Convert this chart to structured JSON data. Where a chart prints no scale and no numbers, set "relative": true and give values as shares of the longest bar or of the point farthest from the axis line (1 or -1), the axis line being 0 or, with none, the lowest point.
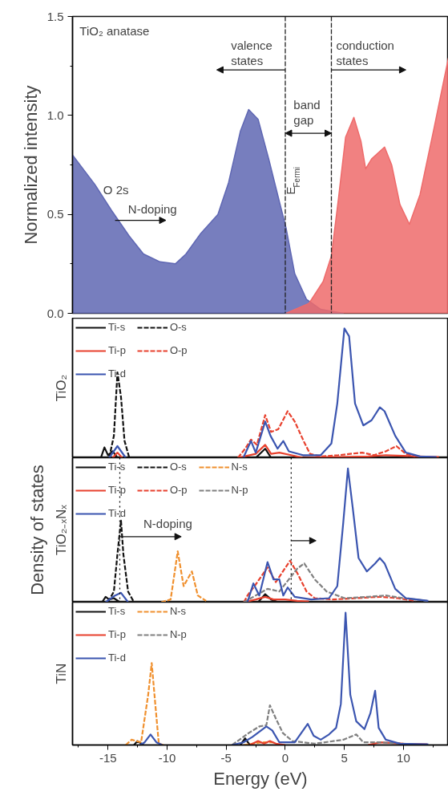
{
  "chart_data": [
    {
      "type": "area",
      "ylabel": "Normalized intensity",
      "xlim": [
        -18,
        13.8
      ],
      "ylim": [
        0,
        1.5
      ],
      "tick_labels": "y",
      "yticks": [
        {
          "value": 0,
          "label": "0.0"
        },
        {
          "value": 0.25,
          "label": null
        },
        {
          "value": 0.5,
          "label": "0.5"
        },
        {
          "value": 0.75,
          "label": null
        },
        {
          "value": 1,
          "label": "1.0"
        },
        {
          "value": 1.25,
          "label": null
        },
        {
          "value": 1.5,
          "label": "1.5"
        }
      ],
      "series": [
        {
          "color": "#5f67b3",
          "x": [
            -18.0,
            -16.1,
            -14.7,
            -13.2,
            -12.0,
            -10.6,
            -9.3,
            -8.4,
            -7.2,
            -5.7,
            -4.8,
            -3.8,
            -3.1,
            -2.3,
            -1.4,
            -0.65,
            0.07,
            0.8,
            1.8,
            3.0,
            4.9
          ],
          "values": [
            0.8,
            0.65,
            0.52,
            0.39,
            0.3,
            0.26,
            0.25,
            0.3,
            0.4,
            0.5,
            0.66,
            0.92,
            1.03,
            0.98,
            0.78,
            0.6,
            0.43,
            0.2,
            0.07,
            0.02,
            0
          ]
        },
        {
          "color": "#ee6b6b",
          "x": [
            0.07,
            2.0,
            3.2,
            3.9,
            4.5,
            5.1,
            5.8,
            6.4,
            6.8,
            7.3,
            8.4,
            9.0,
            9.7,
            10.5,
            11.4,
            12.6,
            13.8
          ],
          "values": [
            0,
            0.05,
            0.16,
            0.29,
            0.58,
            0.89,
            0.99,
            0.87,
            0.73,
            0.78,
            0.84,
            0.75,
            0.55,
            0.45,
            0.6,
            0.94,
            1.29
          ]
        }
      ],
      "ref_lines": [
        {
          "axis": "x",
          "value": 0,
          "line_style": "dashed",
          "color": "#222222"
        },
        {
          "axis": "x",
          "value": 3.9,
          "line_style": "dashed",
          "color": "#222222"
        }
      ],
      "annotations": [
        "TiO₂ anatase",
        "valence\nstates",
        "conduction\nstates",
        {
          "text": "band\ngap",
          "x": 0,
          "y": 0.91
        },
        "E$_{Fermi}$",
        "O 2s",
        "N-doping"
      ]
    },
    {
      "type": "line",
      "ylabel": "TiO₂",
      "relative": true,
      "xlim": [
        -18,
        13.8
      ],
      "tick_labels": false,
      "legend": "top left",
      "series": [
        {
          "name": "Ti-s",
          "color": "#111111",
          "line_style": "solid",
          "x": [
            -15.6,
            -15.3,
            -15.0,
            -14.6,
            -14.2,
            -8,
            -2.5,
            -1.7,
            -1.2
          ],
          "values": [
            0,
            0.08,
            0.02,
            0.05,
            0,
            null,
            0,
            0.07,
            0
          ]
        },
        {
          "name": "O-s",
          "color": "#111111",
          "line_style": "dashed",
          "x": [
            -14.9,
            -14.5,
            -14.2,
            -13.9,
            -13.6,
            -13.2
          ],
          "values": [
            0,
            0.17,
            0.66,
            0.47,
            0.13,
            0
          ]
        },
        {
          "name": "Ti-p",
          "color": "#e8412e",
          "line_style": "solid",
          "x": [
            -14.6,
            -14.2,
            -13.8,
            -8,
            -4,
            -2.5,
            -1.7,
            -1.2,
            -0.5,
            0.5,
            1.5,
            7,
            8.5,
            13
          ],
          "values": [
            0,
            0.04,
            0,
            null,
            0,
            0.03,
            0.1,
            0.03,
            0.04,
            0.02,
            0,
            0.01,
            0.02,
            0.005
          ]
        },
        {
          "name": "O-p",
          "color": "#e8412e",
          "line_style": "dashed",
          "x": [
            -4,
            -3.4,
            -2.9,
            -2.4,
            -1.7,
            -1.2,
            -0.6,
            0.2,
            0.8,
            1.6,
            2.1,
            3.0,
            4.5,
            6.5,
            7.5,
            8.5,
            9.4,
            10.2,
            11
          ],
          "values": [
            0,
            0.07,
            0.14,
            0.1,
            0.33,
            0.2,
            0.22,
            0.36,
            0.28,
            0.12,
            0.03,
            0.01,
            0.02,
            0.04,
            0.02,
            0.05,
            0.09,
            0.03,
            0.01
          ]
        },
        {
          "name": "Ti-d",
          "color": "#3b55b0",
          "line_style": "solid",
          "x": [
            -14.9,
            -14.2,
            -13.5,
            -8,
            -3.55,
            -2.9,
            -2.5,
            -1.7,
            -1.25,
            -0.65,
            -0.17,
            0.3,
            1.5,
            3.0,
            3.9,
            4.4,
            5.0,
            5.4,
            5.9,
            6.6,
            7.3,
            8.0,
            8.4,
            9.3,
            10.2,
            11.4,
            12.8
          ],
          "values": [
            0,
            0.09,
            0,
            null,
            0,
            0.13,
            0.04,
            0.28,
            0.17,
            0.07,
            0.13,
            0.05,
            0.02,
            0.02,
            0.11,
            0.42,
            1.0,
            0.94,
            0.42,
            0.25,
            0.29,
            0.39,
            0.36,
            0.17,
            0.04,
            0.01,
            0.005
          ]
        }
      ]
    },
    {
      "type": "line",
      "ylabel": "TiO₂₋ₓNₓ",
      "relative": true,
      "xlim": [
        -18,
        13.8
      ],
      "tick_labels": false,
      "legend": "top left",
      "annotations": [
        "Density of states",
        "N-doping"
      ],
      "ref_lines": [
        {
          "axis": "x",
          "value": -14,
          "line_style": "dotted",
          "color": "#111111"
        },
        {
          "axis": "x",
          "value": 0.5,
          "line_style": "dotted",
          "color": "#111111"
        }
      ],
      "series": [
        {
          "name": "Ti-s",
          "color": "#111111",
          "line_style": "solid",
          "x": [
            -15.5,
            -15.2,
            -14.9,
            -14.5,
            -14,
            -8,
            -2.3,
            -1.7,
            -1.2,
            -0.6
          ],
          "values": [
            0,
            0.04,
            0.02,
            0.03,
            0,
            null,
            0,
            0.06,
            0.02,
            0
          ]
        },
        {
          "name": "O-s",
          "color": "#111111",
          "line_style": "dashed",
          "x": [
            -15.0,
            -14.5,
            -14.2,
            -13.9,
            -13.7,
            -13.3,
            -12.8
          ],
          "values": [
            0,
            0.08,
            0.36,
            0.61,
            0.36,
            0.08,
            0
          ]
        },
        {
          "name": "N-s",
          "color": "#f0902e",
          "line_style": "dashed",
          "x": [
            -10.5,
            -9.7,
            -9.1,
            -8.6,
            -7.9,
            -7.4,
            -6.7
          ],
          "values": [
            0,
            0.02,
            0.38,
            0.12,
            0.23,
            0.05,
            0.01
          ]
        },
        {
          "name": "Ti-p",
          "color": "#e8412e",
          "line_style": "solid",
          "x": [
            -3.5,
            -2.5,
            -1.7,
            -1.0,
            0,
            1.0,
            2.0
          ],
          "values": [
            0,
            0.02,
            0.04,
            0.02,
            0.02,
            0.01,
            0.005
          ]
        },
        {
          "name": "O-p",
          "color": "#e8412e",
          "line_style": "dashed",
          "x": [
            -3.5,
            -3.2,
            -2.6,
            -1.5,
            -0.8,
            0.4,
            1.0,
            1.8,
            2.5,
            4,
            6,
            8,
            9.5,
            11
          ],
          "values": [
            0,
            0.05,
            0.12,
            0.26,
            0.15,
            0.31,
            0.22,
            0.08,
            0.03,
            0.02,
            0.03,
            0.04,
            0.03,
            0.01
          ]
        },
        {
          "name": "N-p",
          "color": "#808080",
          "line_style": "dashed",
          "x": [
            -3.5,
            -2.5,
            -1.5,
            -0.5,
            1.0,
            1.6,
            2.5,
            3.5,
            5,
            7,
            8.5,
            10,
            12
          ],
          "values": [
            0,
            0.05,
            0.1,
            0.08,
            0.25,
            0.29,
            0.17,
            0.08,
            0.03,
            0.04,
            0.05,
            0.03,
            0.01
          ]
        },
        {
          "name": "Ti-d",
          "color": "#3b55b0",
          "line_style": "solid",
          "x": [
            -15.2,
            -14.4,
            -13.9,
            -13.3,
            -8,
            -3.2,
            -2.7,
            -2.2,
            -1.5,
            -1.0,
            -0.5,
            -0.17,
            0.2,
            0.8,
            2.2,
            3.7,
            4.4,
            4.9,
            5.3,
            5.7,
            6.2,
            6.9,
            7.6,
            8.0,
            8.4,
            9.3,
            10.2,
            12.1
          ],
          "values": [
            0,
            0.05,
            0.07,
            0,
            null,
            0,
            0.14,
            0.05,
            0.3,
            0.17,
            0.17,
            0.05,
            0.11,
            0.04,
            0.02,
            0.03,
            0.12,
            0.59,
            1.0,
            0.71,
            0.33,
            0.23,
            0.29,
            0.33,
            0.29,
            0.1,
            0.03,
            0.01
          ]
        }
      ]
    },
    {
      "type": "line",
      "ylabel": "TiN",
      "xlabel": "Energy (eV)",
      "relative": true,
      "xlim": [
        -18,
        13.8
      ],
      "tick_labels": "x",
      "legend": "top left",
      "xticks": [
        {
          "value": -17.5,
          "label": null
        },
        -15,
        {
          "value": -12.5,
          "label": null
        },
        -10,
        {
          "value": -7.5,
          "label": null
        },
        -5,
        {
          "value": -2.5,
          "label": null
        },
        0,
        {
          "value": 2.5,
          "label": null
        },
        5,
        {
          "value": 7.5,
          "label": null
        },
        10,
        {
          "value": 12.5,
          "label": null
        }
      ],
      "series": [
        {
          "name": "Ti-s",
          "color": "#111111",
          "line_style": "solid",
          "x": [
            -12.8,
            -12.5,
            -12.0,
            -8,
            -3.8,
            -3.4,
            -3.0
          ],
          "values": [
            0,
            0.03,
            0,
            null,
            0,
            0.05,
            0
          ]
        },
        {
          "name": "N-s",
          "color": "#f0902e",
          "line_style": "dashed",
          "x": [
            -13.5,
            -13.0,
            -12.2,
            -11.6,
            -11.3,
            -11.0,
            -10.7,
            -10.3,
            -7,
            -3.5,
            -2,
            -1
          ],
          "values": [
            0,
            0.04,
            0.02,
            0.38,
            0.62,
            0.31,
            0.01,
            0,
            null,
            0,
            0.02,
            0.02
          ]
        },
        {
          "name": "Ti-p",
          "color": "#e8412e",
          "line_style": "solid",
          "x": [
            -3,
            -2.3,
            -1.8,
            -1.3,
            -0.8,
            0,
            4,
            7,
            8,
            10,
            12
          ],
          "values": [
            0,
            0.03,
            0.01,
            0.03,
            0.01,
            0,
            null,
            0,
            0.02,
            0.01,
            0.005
          ]
        },
        {
          "name": "N-p",
          "color": "#808080",
          "line_style": "dashed",
          "x": [
            -4.5,
            -3.1,
            -2.2,
            -1.6,
            -1.3,
            -0.8,
            -0.2,
            0.6,
            2.5,
            4.9,
            6.0,
            6.6,
            8.0,
            11
          ],
          "values": [
            0,
            0.09,
            0.14,
            0.15,
            0.3,
            0.2,
            0.09,
            0.03,
            0.01,
            0.04,
            0.08,
            0.02,
            0.02,
            0.005
          ]
        },
        {
          "name": "Ti-d",
          "color": "#3b55b0",
          "line_style": "solid",
          "x": [
            -12.3,
            -11.9,
            -11.4,
            -10.9,
            -10.4,
            -8,
            -4.5,
            -3.55,
            -2.8,
            -1.6,
            -1.1,
            -0.5,
            0.8,
            1.9,
            2.4,
            3.0,
            3.7,
            4.3,
            4.7,
            5.1,
            5.5,
            6.0,
            6.7,
            7.2,
            7.6,
            7.9,
            8.5,
            9.7,
            12.1
          ],
          "values": [
            0,
            0.02,
            0.08,
            0.02,
            0,
            null,
            0,
            0.02,
            0.06,
            0.14,
            0.11,
            0.02,
            0.02,
            0.16,
            0.07,
            0.04,
            0.08,
            0.13,
            0.31,
            1.0,
            0.38,
            0.18,
            0.12,
            0.24,
            0.41,
            0.13,
            0.04,
            0.01,
            0.005
          ]
        }
      ]
    }
  ]
}
